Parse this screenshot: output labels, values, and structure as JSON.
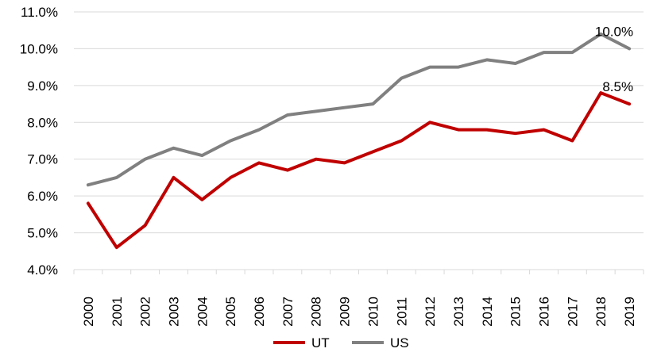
{
  "chart_data": {
    "type": "line",
    "x": [
      "2000",
      "2001",
      "2002",
      "2003",
      "2004",
      "2005",
      "2006",
      "2007",
      "2008",
      "2009",
      "2010",
      "2011",
      "2012",
      "2013",
      "2014",
      "2015",
      "2016",
      "2017",
      "2018",
      "2019"
    ],
    "y_ticks": [
      "4.0%",
      "5.0%",
      "6.0%",
      "7.0%",
      "8.0%",
      "9.0%",
      "10.0%",
      "11.0%"
    ],
    "ylim": [
      4.0,
      11.0
    ],
    "y_unit": "%",
    "grid": "horizontal",
    "legend_position": "bottom",
    "series": [
      {
        "name": "UT",
        "color": "#c00000",
        "values": [
          5.8,
          4.6,
          5.2,
          6.5,
          5.9,
          6.5,
          6.9,
          6.7,
          7.0,
          6.9,
          7.2,
          7.5,
          8.0,
          7.8,
          7.8,
          7.7,
          7.8,
          7.5,
          8.8,
          8.5
        ],
        "end_label": "8.5%"
      },
      {
        "name": "US",
        "color": "#808080",
        "values": [
          6.3,
          6.5,
          7.0,
          7.3,
          7.1,
          7.5,
          7.8,
          8.2,
          8.3,
          8.4,
          8.5,
          9.2,
          9.5,
          9.5,
          9.7,
          9.6,
          9.9,
          9.9,
          10.4,
          10.0
        ],
        "end_label": "10.0%"
      }
    ]
  }
}
